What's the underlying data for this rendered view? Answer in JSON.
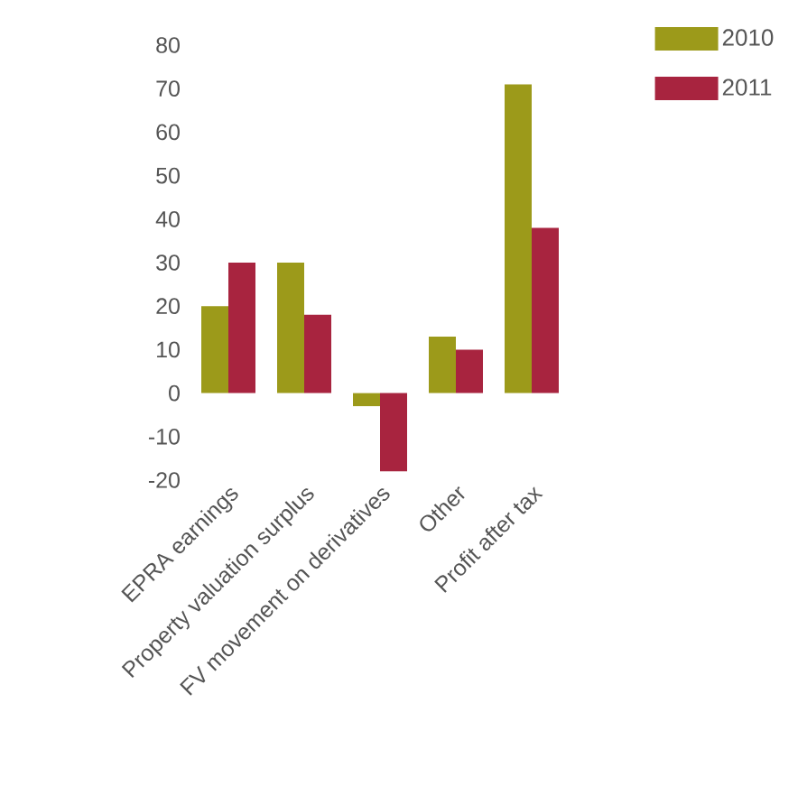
{
  "chart_data": {
    "type": "bar",
    "categories": [
      "EPRA earnings",
      "Property valuation surplus",
      "FV movement on derivatives",
      "Other",
      "Profit after tax"
    ],
    "series": [
      {
        "name": "2010",
        "color": "#9c9a1a",
        "values": [
          20,
          30,
          -3,
          13,
          71
        ]
      },
      {
        "name": "2011",
        "color": "#a8243f",
        "values": [
          30,
          18,
          -18,
          10,
          38
        ]
      }
    ],
    "ylim": [
      -20,
      80
    ],
    "yticks": [
      -20,
      -10,
      0,
      10,
      20,
      30,
      40,
      50,
      60,
      70,
      80
    ],
    "grid": false,
    "legend": "top right"
  }
}
